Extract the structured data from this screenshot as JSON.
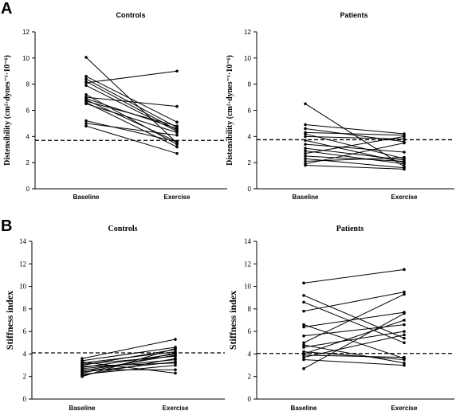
{
  "panel_labels": [
    "A",
    "B"
  ],
  "chart_data": [
    {
      "type": "line",
      "panel": "A",
      "title": "Controls",
      "ylabel": "Distensibility (cm²·dynes⁻¹·10⁻⁶)",
      "categories": [
        "Baseline",
        "Exercise"
      ],
      "ylim": [
        0,
        12
      ],
      "yticks": [
        0,
        2,
        4,
        6,
        8,
        10,
        12
      ],
      "reference_line": 3.7,
      "grid": false,
      "series": [
        {
          "values": [
            10.05,
            3.5
          ]
        },
        {
          "values": [
            8.6,
            5.1
          ]
        },
        {
          "values": [
            8.4,
            4.7
          ]
        },
        {
          "values": [
            8.2,
            4.5
          ]
        },
        {
          "values": [
            8.1,
            9.0
          ]
        },
        {
          "values": [
            7.9,
            4.4
          ]
        },
        {
          "values": [
            7.2,
            3.4
          ]
        },
        {
          "values": [
            7.0,
            6.3
          ]
        },
        {
          "values": [
            6.9,
            4.6
          ]
        },
        {
          "values": [
            6.8,
            3.6
          ]
        },
        {
          "values": [
            6.7,
            4.8
          ]
        },
        {
          "values": [
            6.6,
            3.2
          ]
        },
        {
          "values": [
            6.5,
            4.3
          ]
        },
        {
          "values": [
            5.2,
            3.6
          ]
        },
        {
          "values": [
            5.0,
            4.1
          ]
        },
        {
          "values": [
            4.8,
            2.7
          ]
        }
      ]
    },
    {
      "type": "line",
      "panel": "A",
      "title": "Patients",
      "ylabel": "Distensibility (cm²·dynes⁻¹·10⁻⁶)",
      "categories": [
        "Baseline",
        "Exercise"
      ],
      "ylim": [
        0,
        12
      ],
      "yticks": [
        0,
        2,
        4,
        6,
        8,
        10,
        12
      ],
      "reference_line": 3.75,
      "grid": false,
      "series": [
        {
          "values": [
            6.5,
            1.7
          ]
        },
        {
          "values": [
            4.9,
            4.2
          ]
        },
        {
          "values": [
            4.6,
            3.6
          ]
        },
        {
          "values": [
            4.3,
            4.1
          ]
        },
        {
          "values": [
            4.2,
            2.3
          ]
        },
        {
          "values": [
            4.0,
            3.8
          ]
        },
        {
          "values": [
            3.7,
            2.0
          ]
        },
        {
          "values": [
            3.4,
            2.8
          ]
        },
        {
          "values": [
            3.1,
            2.2
          ]
        },
        {
          "values": [
            2.9,
            1.9
          ]
        },
        {
          "values": [
            2.7,
            4.0
          ]
        },
        {
          "values": [
            2.5,
            2.1
          ]
        },
        {
          "values": [
            2.3,
            1.6
          ]
        },
        {
          "values": [
            2.1,
            2.4
          ]
        },
        {
          "values": [
            1.9,
            3.5
          ]
        },
        {
          "values": [
            1.8,
            1.5
          ]
        }
      ]
    },
    {
      "type": "line",
      "panel": "B",
      "title": "Controls",
      "ylabel": "Stiffness index",
      "categories": [
        "Baseline",
        "Exercise"
      ],
      "ylim": [
        0,
        14
      ],
      "yticks": [
        0,
        2,
        4,
        6,
        8,
        10,
        12,
        14
      ],
      "reference_line": 4.1,
      "grid": false,
      "series": [
        {
          "values": [
            3.6,
            5.3
          ]
        },
        {
          "values": [
            3.4,
            4.6
          ]
        },
        {
          "values": [
            3.3,
            2.3
          ]
        },
        {
          "values": [
            3.2,
            4.2
          ]
        },
        {
          "values": [
            3.1,
            3.8
          ]
        },
        {
          "values": [
            3.0,
            4.4
          ]
        },
        {
          "values": [
            2.9,
            3.2
          ]
        },
        {
          "values": [
            2.8,
            4.0
          ]
        },
        {
          "values": [
            2.7,
            3.5
          ]
        },
        {
          "values": [
            2.6,
            2.6
          ]
        },
        {
          "values": [
            2.5,
            3.9
          ]
        },
        {
          "values": [
            2.4,
            3.3
          ]
        },
        {
          "values": [
            2.3,
            4.1
          ]
        },
        {
          "values": [
            2.2,
            3.0
          ]
        },
        {
          "values": [
            2.1,
            3.6
          ]
        },
        {
          "values": [
            2.0,
            4.5
          ]
        }
      ]
    },
    {
      "type": "line",
      "panel": "B",
      "title": "Patients",
      "ylabel": "Stiffness index",
      "categories": [
        "Baseline",
        "Exercise"
      ],
      "ylim": [
        0,
        14
      ],
      "yticks": [
        0,
        2,
        4,
        6,
        8,
        10,
        12,
        14
      ],
      "reference_line": 4.05,
      "grid": false,
      "series": [
        {
          "values": [
            10.3,
            11.5
          ]
        },
        {
          "values": [
            9.2,
            5.4
          ]
        },
        {
          "values": [
            8.6,
            5.0
          ]
        },
        {
          "values": [
            7.8,
            9.5
          ]
        },
        {
          "values": [
            6.6,
            3.6
          ]
        },
        {
          "values": [
            6.4,
            7.7
          ]
        },
        {
          "values": [
            5.6,
            6.6
          ]
        },
        {
          "values": [
            5.0,
            9.3
          ]
        },
        {
          "values": [
            4.8,
            3.2
          ]
        },
        {
          "values": [
            4.6,
            6.0
          ]
        },
        {
          "values": [
            4.2,
            3.5
          ]
        },
        {
          "values": [
            4.0,
            7.0
          ]
        },
        {
          "values": [
            3.9,
            3.7
          ]
        },
        {
          "values": [
            3.7,
            5.7
          ]
        },
        {
          "values": [
            3.5,
            3.0
          ]
        },
        {
          "values": [
            2.7,
            7.6
          ]
        }
      ]
    }
  ]
}
